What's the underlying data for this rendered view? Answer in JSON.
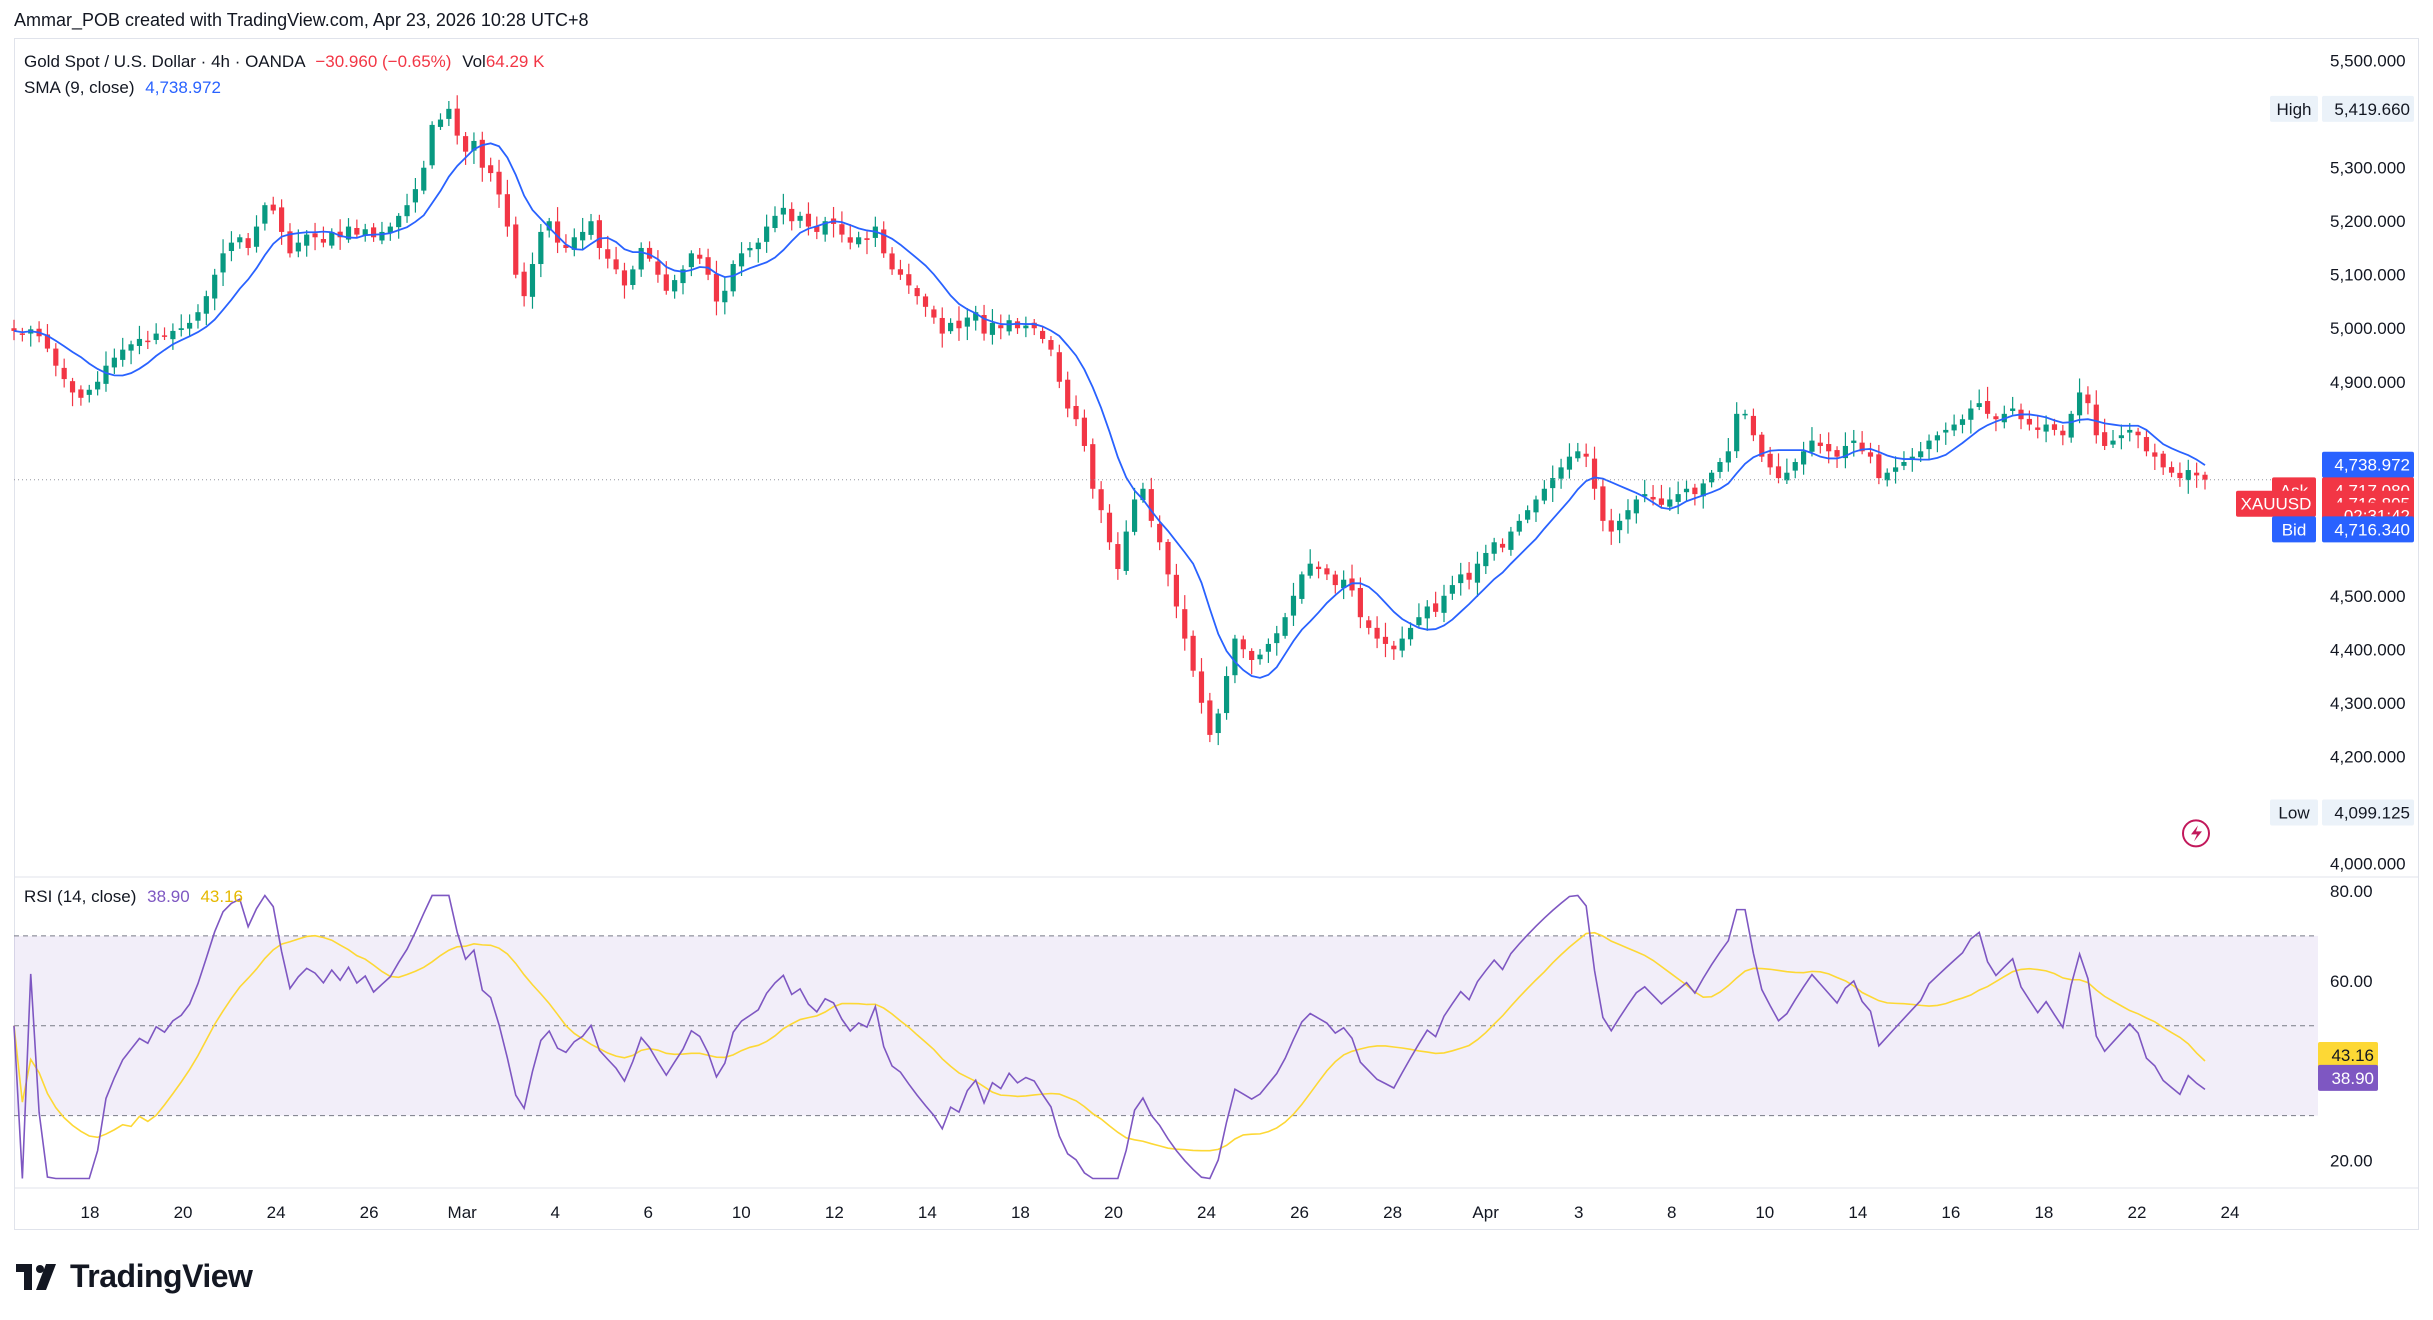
{
  "header": {
    "text": "Ammar_POB created with TradingView.com, Apr 23, 2026 10:28 UTC+8"
  },
  "legend": {
    "symbol": "Gold Spot / U.S. Dollar · 4h · OANDA",
    "change": "−30.960 (−0.65%)",
    "vol_label": "Vol",
    "vol_value": "64.29 K",
    "sma_label": "SMA (9, close)",
    "sma_value": "4,738.972",
    "rsi_label": "RSI (14, close)",
    "rsi_value": "38.90",
    "rsi_ma_value": "43.16"
  },
  "price_tags": {
    "high_label": "High",
    "high_value": "5,419.660",
    "low_label": "Low",
    "low_value": "4,099.125",
    "sma_tag": "4,738.972",
    "ask_label": "Ask",
    "ask_value": "4,717.080",
    "symbol_label": "XAUUSD",
    "last_value": "4,716.805",
    "countdown": "02:31:42",
    "bid_label": "Bid",
    "bid_value": "4,716.340",
    "rsi_ma_tag": "43.16",
    "rsi_tag": "38.90"
  },
  "colors": {
    "up": "#089981",
    "down": "#f23645",
    "sma": "#2962ff",
    "rsi": "#7e57c2",
    "rsi_ma": "#fdd835",
    "rsi_band": "#7e57c2",
    "grid": "#e0e3eb",
    "text": "#131722"
  },
  "brand": {
    "name": "TradingView"
  },
  "chart_data": [
    {
      "type": "candlestick",
      "title": "Gold Spot / U.S. Dollar · 4h · OANDA",
      "y_ticks": [
        4000,
        4100,
        4200,
        4300,
        4400,
        4500,
        4600,
        4700,
        4800,
        4900,
        5000,
        5100,
        5200,
        5300,
        5400,
        5500
      ],
      "y_tick_labels": [
        "4,000.000",
        "",
        "4,200.000",
        "4,300.000",
        "4,400.000",
        "4,500.000",
        "",
        "",
        "",
        "4,900.000",
        "5,000.000",
        "5,100.000",
        "5,200.000",
        "5,300.000",
        "",
        "5,500.000"
      ],
      "ylim": [
        3995,
        5520
      ],
      "x_tick_labels": [
        "18",
        "20",
        "24",
        "26",
        "Mar",
        "4",
        "6",
        "10",
        "12",
        "14",
        "18",
        "20",
        "24",
        "26",
        "28",
        "Apr",
        "3",
        "8",
        "10",
        "14",
        "16",
        "18",
        "22",
        "24"
      ],
      "high": 5419.66,
      "low": 4099.125,
      "last": 4716.805,
      "sma_period": 9,
      "candles_close": [
        4995,
        4990,
        4998,
        4985,
        4962,
        4930,
        4905,
        4880,
        4870,
        4885,
        4900,
        4930,
        4945,
        4960,
        4970,
        4980,
        4975,
        4990,
        4985,
        4995,
        5000,
        5010,
        5030,
        5060,
        5100,
        5140,
        5160,
        5170,
        5150,
        5190,
        5230,
        5220,
        5180,
        5140,
        5160,
        5175,
        5170,
        5160,
        5180,
        5170,
        5190,
        5175,
        5185,
        5170,
        5180,
        5190,
        5210,
        5230,
        5260,
        5300,
        5380,
        5390,
        5410,
        5360,
        5330,
        5350,
        5300,
        5290,
        5250,
        5190,
        5100,
        5060,
        5120,
        5180,
        5200,
        5160,
        5150,
        5170,
        5180,
        5200,
        5150,
        5130,
        5110,
        5080,
        5110,
        5150,
        5130,
        5100,
        5070,
        5090,
        5110,
        5140,
        5130,
        5100,
        5050,
        5070,
        5120,
        5140,
        5150,
        5160,
        5190,
        5210,
        5225,
        5200,
        5210,
        5190,
        5180,
        5200,
        5195,
        5175,
        5160,
        5170,
        5165,
        5190,
        5140,
        5110,
        5100,
        5080,
        5060,
        5040,
        5020,
        4990,
        5010,
        5000,
        5020,
        5030,
        4990,
        5010,
        5000,
        5015,
        5000,
        5005,
        5000,
        4980,
        4960,
        4900,
        4850,
        4830,
        4780,
        4700,
        4660,
        4600,
        4550,
        4620,
        4680,
        4700,
        4640,
        4600,
        4540,
        4480,
        4420,
        4360,
        4300,
        4240,
        4280,
        4350,
        4420,
        4400,
        4380,
        4390,
        4410,
        4430,
        4460,
        4500,
        4540,
        4560,
        4550,
        4540,
        4520,
        4530,
        4510,
        4460,
        4440,
        4420,
        4410,
        4400,
        4420,
        4440,
        4460,
        4480,
        4470,
        4500,
        4520,
        4540,
        4530,
        4560,
        4580,
        4600,
        4590,
        4620,
        4640,
        4660,
        4680,
        4700,
        4720,
        4740,
        4760,
        4770,
        4760,
        4700,
        4640,
        4620,
        4640,
        4660,
        4680,
        4690,
        4680,
        4670,
        4680,
        4690,
        4700,
        4690,
        4710,
        4730,
        4750,
        4770,
        4840,
        4840,
        4800,
        4760,
        4740,
        4720,
        4730,
        4750,
        4770,
        4790,
        4780,
        4770,
        4760,
        4780,
        4790,
        4770,
        4760,
        4720,
        4730,
        4740,
        4750,
        4760,
        4770,
        4790,
        4800,
        4810,
        4820,
        4830,
        4850,
        4860,
        4840,
        4830,
        4840,
        4850,
        4830,
        4820,
        4810,
        4820,
        4810,
        4800,
        4840,
        4880,
        4860,
        4800,
        4780,
        4790,
        4800,
        4810,
        4800,
        4770,
        4760,
        4740,
        4730,
        4720,
        4735,
        4725,
        4717
      ]
    },
    {
      "type": "line",
      "title": "RSI (14, close)",
      "y_ticks": [
        20,
        40,
        60,
        80
      ],
      "y_tick_labels": [
        "20.00",
        "",
        "60.00",
        "80.00"
      ],
      "ylim": [
        15,
        82
      ],
      "bands": [
        30,
        50,
        70
      ],
      "series": [
        {
          "name": "RSI",
          "last": 38.9
        },
        {
          "name": "MA",
          "last": 43.16
        }
      ]
    }
  ]
}
